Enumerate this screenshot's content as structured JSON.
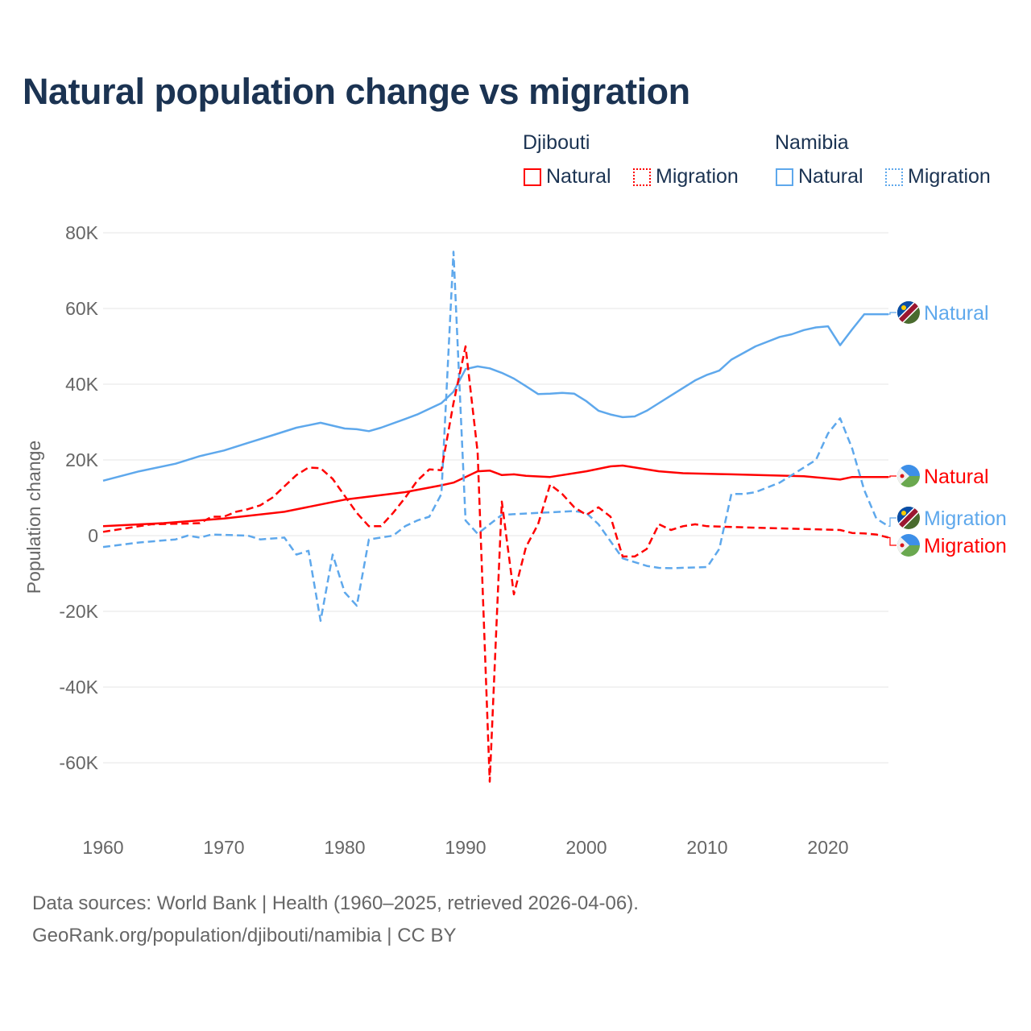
{
  "title": "Natural population change vs migration",
  "legend": {
    "groups": [
      {
        "name": "Djibouti",
        "color": "#ff0000",
        "items": [
          "Natural",
          "Migration"
        ]
      },
      {
        "name": "Namibia",
        "color": "#5ea8ec",
        "items": [
          "Natural",
          "Migration"
        ]
      }
    ]
  },
  "source_line1": "Data sources: World Bank | Health (1960–2025, retrieved 2026-04-06).",
  "source_line2": "GeoRank.org/population/djibouti/namibia | CC BY",
  "chart_data": {
    "type": "line",
    "title": "Natural population change vs migration",
    "xlabel": "",
    "ylabel": "Population change",
    "xlim": [
      1960,
      2025
    ],
    "ylim": [
      -70000,
      80000
    ],
    "x_ticks": [
      1960,
      1970,
      1980,
      1990,
      2000,
      2010,
      2020
    ],
    "x_tick_labels": [
      "1960",
      "1970",
      "1980",
      "1990",
      "2000",
      "2010",
      "2020"
    ],
    "y_ticks": [
      80000,
      60000,
      40000,
      20000,
      0,
      -20000,
      -40000,
      -60000
    ],
    "y_tick_labels": [
      "80K",
      "60K",
      "40K",
      "20K",
      "0",
      "-20K",
      "-40K",
      "-60K"
    ],
    "grid": true,
    "legend_placement": "top-right",
    "series": [
      {
        "name": "Namibia Natural",
        "country": "Namibia",
        "kind": "Natural",
        "color": "#5ea8ec",
        "dash": false,
        "end_label": "Natural",
        "x": [
          1960,
          1963,
          1966,
          1968,
          1970,
          1972,
          1974,
          1976,
          1978,
          1980,
          1981,
          1982,
          1983,
          1985,
          1986,
          1988,
          1989,
          1990,
          1991,
          1992,
          1993,
          1994,
          1995,
          1996,
          1997,
          1998,
          1999,
          2000,
          2001,
          2002,
          2003,
          2004,
          2005,
          2006,
          2007,
          2008,
          2009,
          2010,
          2011,
          2012,
          2014,
          2016,
          2017,
          2018,
          2019,
          2020,
          2021,
          2022,
          2023,
          2024,
          2025
        ],
        "y": [
          14500,
          17000,
          19000,
          21000,
          22500,
          24500,
          26500,
          28500,
          29800,
          28300,
          28100,
          27600,
          28500,
          30800,
          32000,
          35000,
          38000,
          44000,
          44700,
          44200,
          43000,
          41500,
          39500,
          37400,
          37500,
          37700,
          37500,
          35500,
          33000,
          32000,
          31300,
          31500,
          33000,
          35000,
          37000,
          39000,
          41000,
          42500,
          43600,
          46500,
          50000,
          52500,
          53200,
          54300,
          55000,
          55300,
          50300,
          54500,
          58500,
          58500,
          58500
        ]
      },
      {
        "name": "Djibouti Natural",
        "country": "Djibouti",
        "kind": "Natural",
        "color": "#ff0000",
        "dash": false,
        "end_label": "Natural",
        "x": [
          1960,
          1965,
          1970,
          1975,
          1980,
          1985,
          1988,
          1989,
          1990,
          1991,
          1992,
          1993,
          1994,
          1995,
          1997,
          2000,
          2002,
          2003,
          2004,
          2006,
          2008,
          2012,
          2018,
          2021,
          2022,
          2025
        ],
        "y": [
          2500,
          3300,
          4500,
          6300,
          9500,
          11500,
          13300,
          14000,
          15500,
          17000,
          17200,
          16000,
          16200,
          15800,
          15500,
          17000,
          18300,
          18500,
          18000,
          17000,
          16500,
          16200,
          15700,
          14800,
          15500,
          15500
        ]
      },
      {
        "name": "Namibia Migration",
        "country": "Namibia",
        "kind": "Migration",
        "color": "#5ea8ec",
        "dash": true,
        "end_label": "Migration",
        "x": [
          1960,
          1963,
          1966,
          1967,
          1968,
          1969,
          1972,
          1973,
          1975,
          1976,
          1977,
          1978,
          1979,
          1980,
          1981,
          1982,
          1984,
          1985,
          1986,
          1987,
          1988,
          1989,
          1990,
          1991,
          1992,
          1993,
          1996,
          1999,
          2000,
          2001,
          2002,
          2003,
          2004,
          2005,
          2006,
          2007,
          2010,
          2011,
          2012,
          2013,
          2014,
          2016,
          2018,
          2019,
          2020,
          2021,
          2022,
          2023,
          2024,
          2025
        ],
        "y": [
          -3000,
          -1800,
          -1000,
          0,
          -500,
          300,
          0,
          -1000,
          -500,
          -5000,
          -4000,
          -22500,
          -5000,
          -15000,
          -18500,
          -1000,
          0,
          2500,
          4000,
          5000,
          11000,
          75000,
          4000,
          500,
          3000,
          5500,
          6000,
          6500,
          6000,
          3000,
          -1500,
          -6000,
          -7000,
          -8000,
          -8500,
          -8600,
          -8300,
          -3500,
          11000,
          11000,
          11500,
          14000,
          18000,
          20000,
          27000,
          31000,
          23000,
          12000,
          4500,
          2500
        ]
      },
      {
        "name": "Djibouti Migration",
        "country": "Djibouti",
        "kind": "Migration",
        "color": "#ff0000",
        "dash": true,
        "end_label": "Migration",
        "x": [
          1960,
          1962,
          1964,
          1967,
          1968,
          1969,
          1970,
          1971,
          1972,
          1973,
          1974,
          1975,
          1976,
          1977,
          1978,
          1979,
          1980,
          1981,
          1982,
          1983,
          1984,
          1985,
          1986,
          1987,
          1988,
          1989,
          1990,
          1991,
          1992,
          1993,
          1994,
          1995,
          1996,
          1997,
          1998,
          1999,
          2000,
          2001,
          2002,
          2003,
          2004,
          2005,
          2006,
          2007,
          2008,
          2009,
          2010,
          2015,
          2021,
          2022,
          2023,
          2024,
          2025
        ],
        "y": [
          1000,
          2000,
          3000,
          3200,
          3300,
          5000,
          5000,
          6300,
          7000,
          8000,
          10000,
          13000,
          16000,
          18000,
          17800,
          15000,
          10500,
          6000,
          2500,
          2500,
          6000,
          10000,
          14500,
          17500,
          17300,
          35000,
          50000,
          22000,
          -65000,
          9000,
          -15500,
          -3000,
          3000,
          13500,
          11000,
          7500,
          5500,
          7500,
          5000,
          -5500,
          -5500,
          -3500,
          3000,
          1500,
          2500,
          3000,
          2500,
          2000,
          1500,
          700,
          600,
          300,
          -500
        ]
      }
    ]
  }
}
